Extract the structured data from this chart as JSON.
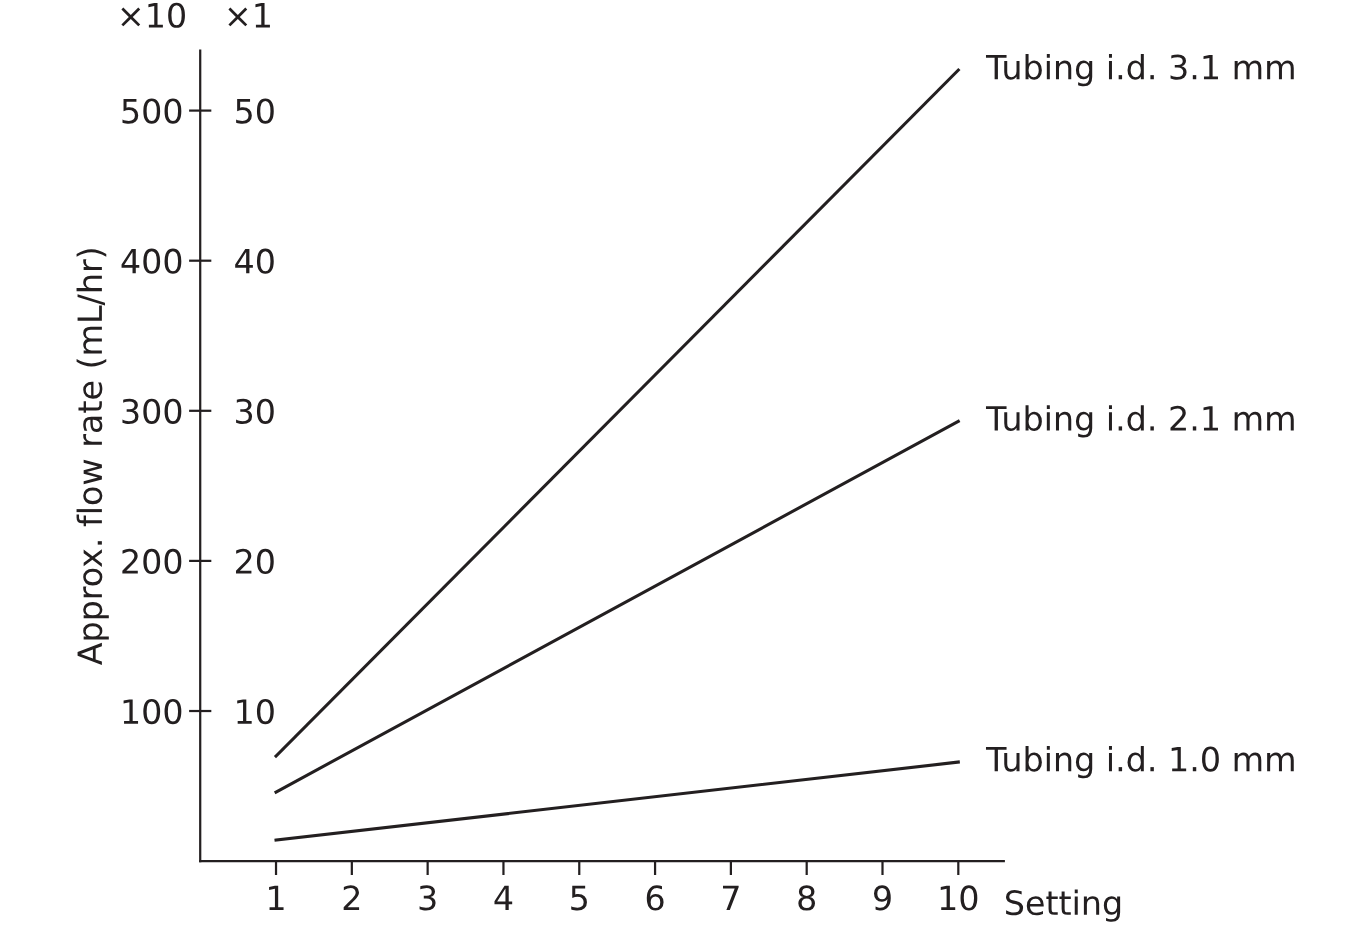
{
  "chart_data": {
    "type": "line",
    "ylabel": "Approx. flow rate (mL/hr)",
    "xlabel": "Setting",
    "x": [
      1,
      10
    ],
    "series": [
      {
        "name": "Tubing i.d. 3.1 mm",
        "color": "#231f20",
        "values": [
          70,
          527
        ]
      },
      {
        "name": "Tubing i.d. 2.1 mm",
        "color": "#231f20",
        "values": [
          46,
          293
        ]
      },
      {
        "name": "Tubing i.d. 1.0 mm",
        "color": "#231f20",
        "values": [
          14,
          66
        ]
      }
    ],
    "xlim": [
      0,
      10.6
    ],
    "xticks": [
      1,
      2,
      3,
      4,
      5,
      6,
      7,
      8,
      9,
      10
    ],
    "ylim": [
      0,
      540
    ],
    "yticks": [
      100,
      200,
      300,
      400,
      500
    ],
    "y2lim": [
      0,
      54
    ],
    "y2ticks": [
      10,
      20,
      30,
      40,
      50
    ],
    "annotations": [
      "×10",
      "×1"
    ],
    "grid": false,
    "legend": false,
    "marker": "none",
    "line_style": "solid"
  }
}
